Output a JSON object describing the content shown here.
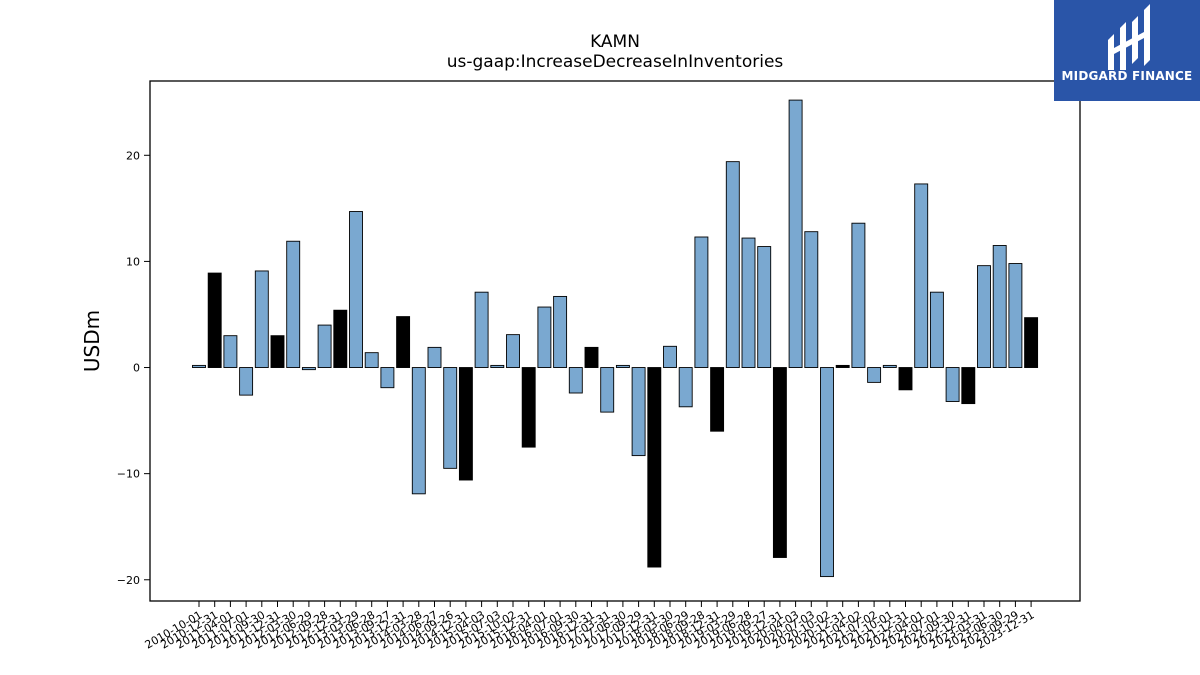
{
  "logo": {
    "text": "MIDGARD FINANCE",
    "color": "#2a55a8"
  },
  "chart_data": {
    "type": "bar",
    "title": "KAMN",
    "subtitle": "us-gaap:IncreaseDecreaseInInventories",
    "ylabel": "USDm",
    "xlabel": "",
    "ylim": [
      -22,
      27
    ],
    "yticks": [
      -20,
      -10,
      0,
      10,
      20
    ],
    "grid": false,
    "colors": {
      "quarter": "#7aa8d0",
      "annual": "#000000",
      "edge": "#000000"
    },
    "tick_labels": [
      "2010-10-01",
      "2010-12-31",
      "2011-04-01",
      "2011-07-01",
      "2011-09-30",
      "2011-12-31",
      "2012-03-30",
      "2012-06-29",
      "2012-09-28",
      "2012-12-31",
      "2013-03-29",
      "2013-06-28",
      "2013-09-27",
      "2013-12-31",
      "2014-03-28",
      "2014-06-27",
      "2014-09-26",
      "2014-12-31",
      "2015-04-03",
      "2015-07-03",
      "2015-10-02",
      "2015-12-31",
      "2016-04-01",
      "2016-07-01",
      "2016-09-30",
      "2016-12-31",
      "2017-03-31",
      "2017-06-30",
      "2017-09-29",
      "2017-12-31",
      "2018-03-30",
      "2018-06-29",
      "2018-09-28",
      "2018-12-31",
      "2019-03-29",
      "2019-06-28",
      "2019-09-27",
      "2019-12-31",
      "2020-04-03",
      "2020-07-03",
      "2020-10-02",
      "2020-12-31",
      "2021-04-02",
      "2021-07-02",
      "2021-10-01",
      "2021-12-31",
      "2022-04-01",
      "2022-07-01",
      "2022-09-30",
      "2022-12-31",
      "2023-03-31",
      "2023-06-30",
      "2023-09-29",
      "2023-12-31"
    ],
    "values": [
      0.2,
      8.9,
      3.0,
      -2.6,
      9.1,
      3.0,
      11.9,
      -0.2,
      4.0,
      5.4,
      14.7,
      1.4,
      -1.9,
      4.8,
      -11.9,
      1.9,
      -9.5,
      -10.6,
      7.1,
      0.2,
      3.1,
      -7.5,
      5.7,
      6.7,
      -2.4,
      1.9,
      -4.2,
      0.2,
      -8.3,
      -18.8,
      2.0,
      -3.7,
      12.3,
      -6.0,
      19.4,
      12.2,
      11.4,
      -17.9,
      25.2,
      12.8,
      -19.7,
      0.2,
      13.6,
      -1.4,
      0.2,
      -2.1,
      17.3,
      7.1,
      -3.2,
      -3.4,
      9.6,
      11.5,
      9.8,
      4.7
    ],
    "annual": [
      false,
      true,
      false,
      false,
      false,
      true,
      false,
      false,
      false,
      true,
      false,
      false,
      false,
      true,
      false,
      false,
      false,
      true,
      false,
      false,
      false,
      true,
      false,
      false,
      false,
      true,
      false,
      false,
      false,
      true,
      false,
      false,
      false,
      true,
      false,
      false,
      false,
      true,
      false,
      false,
      false,
      true,
      false,
      false,
      false,
      true,
      false,
      false,
      false,
      true,
      false,
      false,
      false,
      true
    ]
  }
}
